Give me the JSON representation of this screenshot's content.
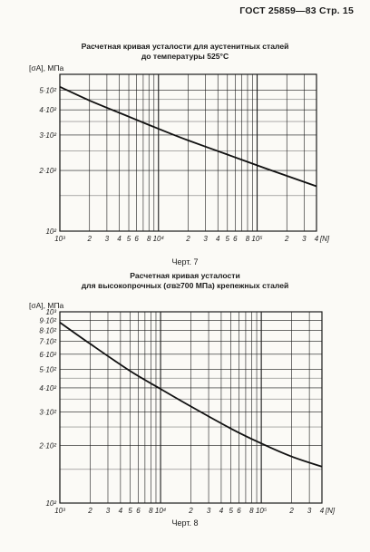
{
  "page": {
    "header": "ГОСТ 25859—83 Стр. 15"
  },
  "figures": [
    {
      "title_lines": [
        "Расчетная кривая усталости для аустенитных сталей",
        "до температуры 525°C"
      ],
      "caption": "Черт.  7",
      "ylabel": "[σA], МПа"
    },
    {
      "title_lines": [
        "Расчетная кривая усталости",
        "для высокопрочных (σв≥700 МПа) крепежных сталей"
      ],
      "caption": "Черт.  8",
      "ylabel": "[σA], МПа"
    }
  ],
  "chart_data": [
    {
      "type": "line",
      "title": "Расчетная кривая усталости для аустенитных сталей до температуры 525°C",
      "xlabel": "[N]",
      "ylabel": "[σA], МПа",
      "xscale": "log",
      "yscale": "log",
      "xlim": [
        1000,
        400000
      ],
      "ylim": [
        100,
        600
      ],
      "grid": true,
      "xticks": [
        1000,
        2000,
        3000,
        4000,
        5000,
        6000,
        8000,
        10000,
        20000,
        30000,
        40000,
        50000,
        60000,
        80000,
        100000,
        200000,
        300000,
        400000
      ],
      "xtick_labels": [
        "10³",
        "2",
        "3",
        "4",
        "5",
        "6",
        "8",
        "10⁴",
        "2",
        "3",
        "4",
        "5",
        "6",
        "8",
        "10⁵",
        "2",
        "3",
        "4"
      ],
      "yticks": [
        100,
        200,
        300,
        400,
        500
      ],
      "ytick_labels": [
        "10²",
        "2·10²",
        "3·10²",
        "4·10²",
        "5·10²"
      ],
      "x": [
        1000,
        2000,
        5000,
        10000,
        20000,
        50000,
        100000,
        200000,
        400000
      ],
      "y": [
        520,
        445,
        370,
        322,
        282,
        240,
        212,
        188,
        167
      ]
    },
    {
      "type": "line",
      "title": "Расчетная кривая усталости для высокопрочных (σв≥700 МПа) крепежных сталей",
      "xlabel": "[N]",
      "ylabel": "[σA], МПа",
      "xscale": "log",
      "yscale": "log",
      "xlim": [
        1000,
        400000
      ],
      "ylim": [
        100,
        1000
      ],
      "grid": true,
      "xticks": [
        1000,
        2000,
        3000,
        4000,
        5000,
        6000,
        8000,
        10000,
        20000,
        30000,
        40000,
        50000,
        60000,
        80000,
        100000,
        200000,
        300000,
        400000
      ],
      "xtick_labels": [
        "10³",
        "2",
        "3",
        "4",
        "5",
        "6",
        "8",
        "10⁴",
        "2",
        "3",
        "4",
        "5",
        "6",
        "8",
        "10⁵",
        "2",
        "3",
        "4"
      ],
      "yticks": [
        100,
        200,
        300,
        400,
        500,
        600,
        700,
        800,
        900,
        1000
      ],
      "ytick_labels": [
        "10²",
        "2·10²",
        "3·10²",
        "4·10²",
        "5·10²",
        "6·10²",
        "7·10²",
        "8·10²",
        "9·10²",
        "10³"
      ],
      "x": [
        1000,
        2000,
        5000,
        10000,
        20000,
        50000,
        100000,
        200000,
        400000
      ],
      "y": [
        880,
        680,
        490,
        395,
        320,
        245,
        205,
        175,
        155
      ]
    }
  ]
}
